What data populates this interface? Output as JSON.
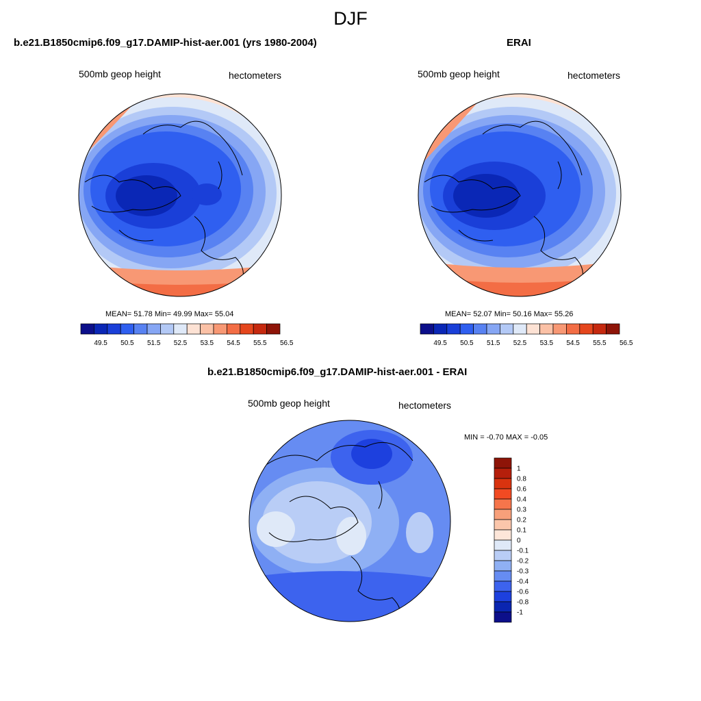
{
  "figure": {
    "title": "DJF"
  },
  "panels": [
    {
      "title": "b.e21.B1850cmip6.f09_g17.DAMIP-hist-aer.001 (yrs 1980-2004)",
      "left_label": "500mb geop height",
      "right_label": "hectometers",
      "stats": "MEAN=  51.78  Min=  49.99  Max=  55.04"
    },
    {
      "title": "ERAI",
      "left_label": "500mb geop height",
      "right_label": "hectometers",
      "stats": "MEAN=  52.07  Min=  50.16  Max=  55.26"
    },
    {
      "title": "b.e21.B1850cmip6.f09_g17.DAMIP-hist-aer.001 - ERAI",
      "left_label": "500mb geop height",
      "right_label": "hectometers",
      "stats": "MIN =  -0.70 MAX =  -0.05"
    }
  ],
  "abs_colorbar": {
    "ticks": [
      "49.5",
      "50.5",
      "51.5",
      "52.5",
      "53.5",
      "54.5",
      "55.5",
      "56.5"
    ],
    "colors": [
      "#0c0f8a",
      "#0a27b6",
      "#1a3fd8",
      "#2f5ff0",
      "#5882f2",
      "#86a6f4",
      "#b3c9f6",
      "#dfe9f8",
      "#fde2d4",
      "#fbc1a6",
      "#f89874",
      "#f36d45",
      "#e5461d",
      "#c6290f",
      "#8e1408"
    ]
  },
  "diff_colorbar": {
    "ticks": [
      "1",
      "0.8",
      "0.6",
      "0.4",
      "0.3",
      "0.2",
      "0.1",
      "0",
      "-0.1",
      "-0.2",
      "-0.3",
      "-0.4",
      "-0.6",
      "-0.8",
      "-1"
    ],
    "colors_top_to_bottom": [
      "#8e1408",
      "#b51f0b",
      "#d9330f",
      "#f24a22",
      "#f6754b",
      "#f8a07a",
      "#fbc6ab",
      "#fde6d9",
      "#dfe9f8",
      "#b9cdf6",
      "#8fb0f4",
      "#668cf2",
      "#3d63ee",
      "#1d40de",
      "#0a25b0",
      "#0c0f8a"
    ]
  }
}
